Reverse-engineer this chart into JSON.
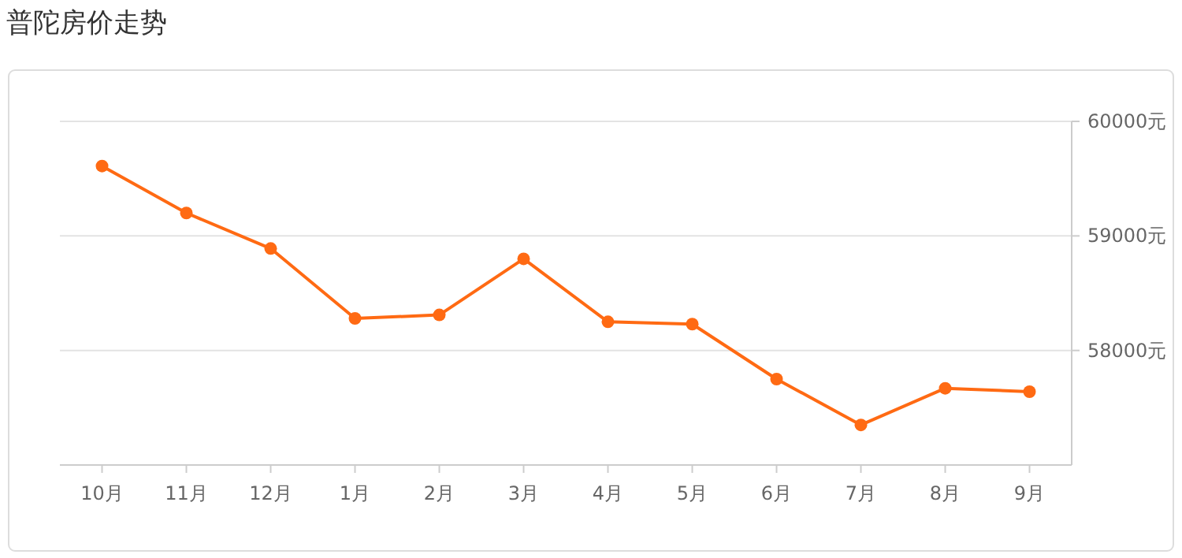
{
  "chart_data": {
    "type": "line",
    "title": "普陀房价走势",
    "categories": [
      "10月",
      "11月",
      "12月",
      "1月",
      "2月",
      "3月",
      "4月",
      "5月",
      "6月",
      "7月",
      "8月",
      "9月"
    ],
    "series": [
      {
        "color": "#ff6a13",
        "values": [
          59610,
          59200,
          58890,
          58280,
          58310,
          58800,
          58250,
          58230,
          57750,
          57350,
          57670,
          57640
        ]
      }
    ],
    "ylim": [
      57000,
      60000
    ],
    "yticks": [
      {
        "value": 58000,
        "label": "58000元"
      },
      {
        "value": 59000,
        "label": "59000元"
      },
      {
        "value": 60000,
        "label": "60000元"
      }
    ],
    "grid": "y",
    "marker": "circle",
    "line_style": "solid"
  }
}
